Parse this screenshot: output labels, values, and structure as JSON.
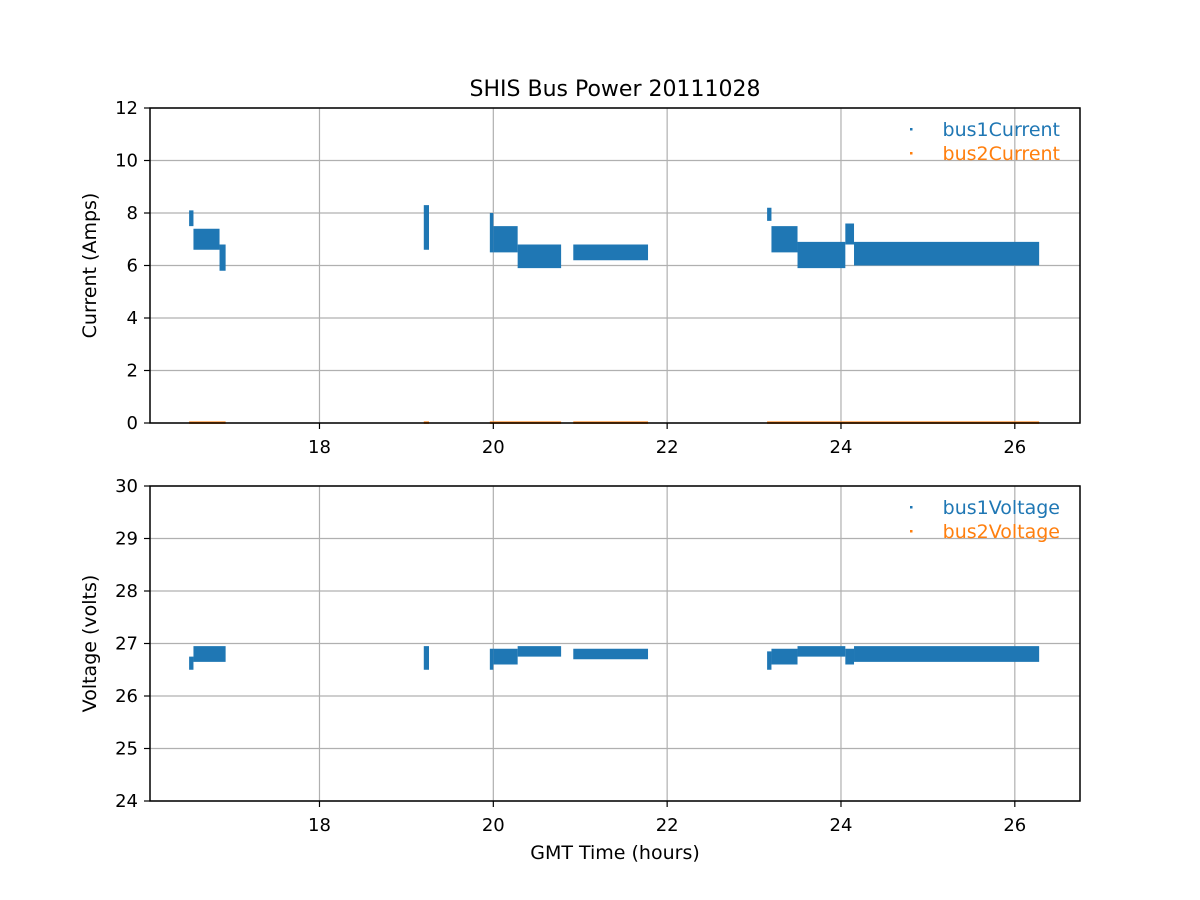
{
  "chart_data": {
    "type": "scatter",
    "title": "SHIS Bus Power 20111028",
    "subplots": [
      {
        "ylabel": "Current (Amps)",
        "xlabel": "",
        "xlim": [
          16.05,
          26.75
        ],
        "ylim": [
          0,
          12
        ],
        "xticks": [
          18,
          20,
          22,
          24,
          26
        ],
        "yticks": [
          0,
          2,
          4,
          6,
          8,
          10,
          12
        ],
        "grid": true,
        "legend_position": "top-right",
        "series": [
          {
            "name": "bus1Current",
            "color": "#1f77b4",
            "segments": [
              {
                "x": [
                  16.5,
                  16.55
                ],
                "y": [
                  7.5,
                  8.1
                ]
              },
              {
                "x": [
                  16.55,
                  16.85
                ],
                "y": [
                  6.6,
                  7.4
                ]
              },
              {
                "x": [
                  16.85,
                  16.92
                ],
                "y": [
                  5.8,
                  6.8
                ]
              },
              {
                "x": [
                  19.2,
                  19.26
                ],
                "y": [
                  6.6,
                  8.3
                ]
              },
              {
                "x": [
                  19.96,
                  20.0
                ],
                "y": [
                  6.5,
                  8.0
                ]
              },
              {
                "x": [
                  20.0,
                  20.28
                ],
                "y": [
                  6.5,
                  7.5
                ]
              },
              {
                "x": [
                  20.28,
                  20.78
                ],
                "y": [
                  5.9,
                  6.8
                ]
              },
              {
                "x": [
                  20.92,
                  21.78
                ],
                "y": [
                  6.2,
                  6.8
                ]
              },
              {
                "x": [
                  23.15,
                  23.2
                ],
                "y": [
                  7.7,
                  8.2
                ]
              },
              {
                "x": [
                  23.2,
                  23.5
                ],
                "y": [
                  6.5,
                  7.5
                ]
              },
              {
                "x": [
                  23.5,
                  24.05
                ],
                "y": [
                  5.9,
                  6.9
                ]
              },
              {
                "x": [
                  24.05,
                  24.15
                ],
                "y": [
                  6.8,
                  7.6
                ]
              },
              {
                "x": [
                  24.15,
                  26.28
                ],
                "y": [
                  6.0,
                  6.9
                ]
              }
            ]
          },
          {
            "name": "bus2Current",
            "color": "#ff7f0e",
            "segments": [
              {
                "x": [
                  16.5,
                  16.92
                ],
                "y": [
                  0.0,
                  0.06
                ]
              },
              {
                "x": [
                  19.2,
                  19.26
                ],
                "y": [
                  0.0,
                  0.06
                ]
              },
              {
                "x": [
                  19.96,
                  20.78
                ],
                "y": [
                  0.0,
                  0.06
                ]
              },
              {
                "x": [
                  20.92,
                  21.78
                ],
                "y": [
                  0.0,
                  0.06
                ]
              },
              {
                "x": [
                  23.15,
                  26.28
                ],
                "y": [
                  0.0,
                  0.06
                ]
              }
            ]
          }
        ]
      },
      {
        "ylabel": "Voltage (volts)",
        "xlabel": "GMT Time (hours)",
        "xlim": [
          16.05,
          26.75
        ],
        "ylim": [
          24,
          30
        ],
        "xticks": [
          18,
          20,
          22,
          24,
          26
        ],
        "yticks": [
          24,
          25,
          26,
          27,
          28,
          29,
          30
        ],
        "grid": true,
        "legend_position": "top-right",
        "series": [
          {
            "name": "bus1Voltage",
            "color": "#1f77b4",
            "segments": [
              {
                "x": [
                  16.5,
                  16.55
                ],
                "y": [
                  26.5,
                  26.75
                ]
              },
              {
                "x": [
                  16.55,
                  16.92
                ],
                "y": [
                  26.65,
                  26.95
                ]
              },
              {
                "x": [
                  19.2,
                  19.26
                ],
                "y": [
                  26.5,
                  26.95
                ]
              },
              {
                "x": [
                  19.96,
                  20.0
                ],
                "y": [
                  26.5,
                  26.9
                ]
              },
              {
                "x": [
                  20.0,
                  20.28
                ],
                "y": [
                  26.6,
                  26.9
                ]
              },
              {
                "x": [
                  20.28,
                  20.78
                ],
                "y": [
                  26.75,
                  26.95
                ]
              },
              {
                "x": [
                  20.92,
                  21.78
                ],
                "y": [
                  26.7,
                  26.9
                ]
              },
              {
                "x": [
                  23.15,
                  23.2
                ],
                "y": [
                  26.5,
                  26.85
                ]
              },
              {
                "x": [
                  23.2,
                  23.5
                ],
                "y": [
                  26.6,
                  26.9
                ]
              },
              {
                "x": [
                  23.5,
                  24.05
                ],
                "y": [
                  26.75,
                  26.95
                ]
              },
              {
                "x": [
                  24.05,
                  24.15
                ],
                "y": [
                  26.6,
                  26.9
                ]
              },
              {
                "x": [
                  24.15,
                  26.28
                ],
                "y": [
                  26.65,
                  26.95
                ]
              }
            ]
          },
          {
            "name": "bus2Voltage",
            "color": "#ff7f0e",
            "segments": []
          }
        ]
      }
    ]
  }
}
